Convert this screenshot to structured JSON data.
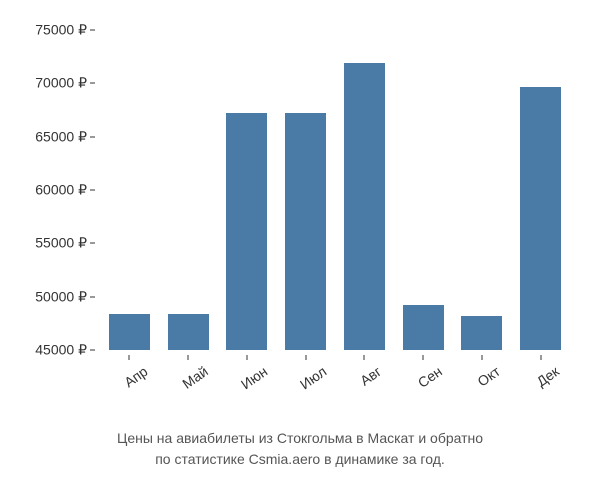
{
  "chart": {
    "type": "bar",
    "categories": [
      "Апр",
      "Май",
      "Июн",
      "Июл",
      "Авг",
      "Сен",
      "Окт",
      "Дек"
    ],
    "values": [
      48400,
      48400,
      67200,
      67200,
      71900,
      49200,
      48200,
      69700
    ],
    "bar_color": "#4a7ba6",
    "ylim": [
      45000,
      75000
    ],
    "ytick_step": 5000,
    "yticks": [
      45000,
      50000,
      55000,
      60000,
      65000,
      70000,
      75000
    ],
    "ytick_labels": [
      "45000 ₽",
      "50000 ₽",
      "55000 ₽",
      "60000 ₽",
      "65000 ₽",
      "70000 ₽",
      "75000 ₽"
    ],
    "currency_symbol": "₽",
    "background_color": "#ffffff",
    "axis_color": "#333333",
    "label_fontsize": 14,
    "caption_fontsize": 14,
    "caption_color": "#555555",
    "bar_width": 0.7,
    "x_label_rotation": -35
  },
  "caption": {
    "line1": "Цены на авиабилеты из Стокгольма в Маскат и обратно",
    "line2": "по статистике Csmia.aero в динамике за год."
  }
}
